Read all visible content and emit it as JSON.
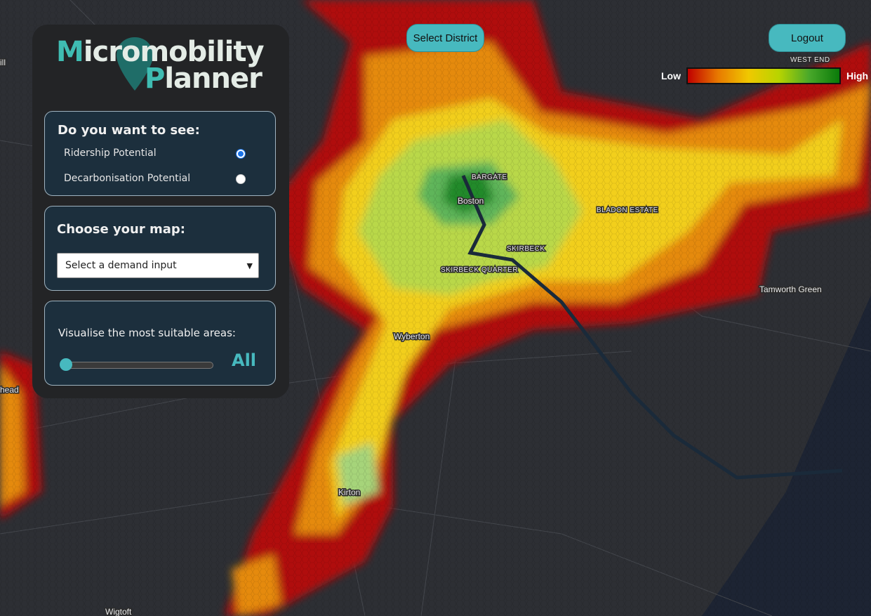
{
  "app": {
    "logo": {
      "line1": "Micromobility",
      "line2": "Planner"
    },
    "buttons": {
      "select_district": "Select District",
      "logout": "Logout"
    },
    "legend": {
      "low": "Low",
      "high": "High"
    },
    "panel": {
      "view": {
        "title": "Do you want to see:",
        "options": [
          "Ridership Potential",
          "Decarbonisation Potential"
        ]
      },
      "map": {
        "title": "Choose your map:",
        "placeholder": "Select a demand input"
      },
      "filter": {
        "title": "Visualise the most suitable areas:",
        "value": "All"
      }
    },
    "map_labels": [
      "Boston",
      "BARGATE",
      "BLADON ESTATE",
      "SKIRBECK",
      "SKIRBECK QUARTER",
      "Wyberton",
      "Kirton",
      "Tamworth Green",
      "WEST END",
      "Wigtoft",
      "ill",
      "head"
    ]
  }
}
